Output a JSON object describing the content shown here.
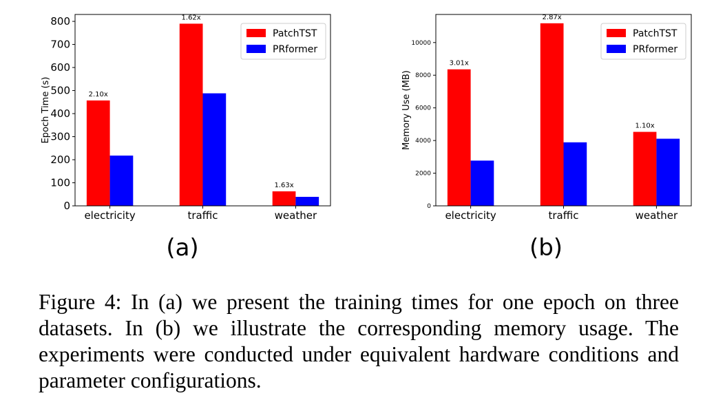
{
  "caption": "Figure 4: In (a) we present the training times for one epoch on three datasets. In (b) we illustrate the corresponding memory usage. The experiments were conducted under equivalent hardware conditions and parameter configurations.",
  "colors": {
    "PatchTST": "#ff0000",
    "PRformer": "#0000ff"
  },
  "chart_data": [
    {
      "panel_label": "(a)",
      "type": "bar",
      "title": "",
      "xlabel": "",
      "ylabel": "Epoch Time (s)",
      "categories": [
        "electricity",
        "traffic",
        "weather"
      ],
      "series": [
        {
          "name": "PatchTST",
          "values": [
            457,
            790,
            63
          ]
        },
        {
          "name": "PRformer",
          "values": [
            218,
            488,
            39
          ]
        }
      ],
      "bar_labels": [
        "2.10x",
        "1.62x",
        "1.63x"
      ],
      "yticks": [
        0,
        100,
        200,
        300,
        400,
        500,
        600,
        700,
        800
      ],
      "ylim": [
        0,
        830
      ],
      "grid": false,
      "legend": "top-right"
    },
    {
      "panel_label": "(b)",
      "type": "bar",
      "title": "",
      "xlabel": "",
      "ylabel": "Memory Use (MB)",
      "categories": [
        "electricity",
        "traffic",
        "weather"
      ],
      "series": [
        {
          "name": "PatchTST",
          "values": [
            8360,
            11180,
            4530
          ]
        },
        {
          "name": "PRformer",
          "values": [
            2770,
            3890,
            4110
          ]
        }
      ],
      "bar_labels": [
        "3.01x",
        "2.87x",
        "1.10x"
      ],
      "yticks": [
        0,
        2000,
        4000,
        6000,
        8000,
        10000
      ],
      "ylim": [
        0,
        11720
      ],
      "grid": false,
      "legend": "top-right"
    }
  ]
}
